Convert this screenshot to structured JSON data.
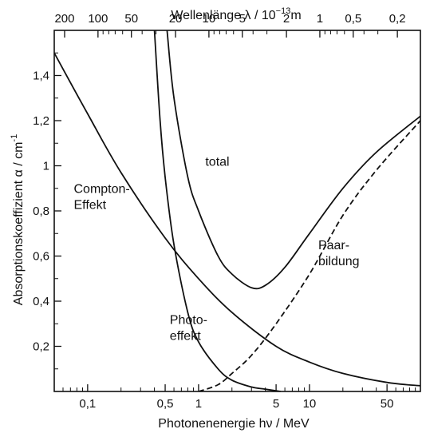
{
  "chart_data": {
    "type": "line",
    "title": "",
    "xlabel": "Photonenenergie  hν / MeV",
    "x2label": "Wellenlänge  λ / 10",
    "x2label_exp": "−13",
    "x2label_unit": "m",
    "ylabel": "Absorptionskoeffizient  α / cm",
    "ylabel_exp": "-1",
    "xscale": "log",
    "xlim": [
      0.05,
      100
    ],
    "ylim": [
      0,
      1.6
    ],
    "grid": false,
    "x_ticks": [
      {
        "value": 0.1,
        "label": "0,1"
      },
      {
        "value": 0.5,
        "label": "0,5"
      },
      {
        "value": 1,
        "label": "1"
      },
      {
        "value": 5,
        "label": "5"
      },
      {
        "value": 10,
        "label": "10"
      },
      {
        "value": 50,
        "label": "50"
      }
    ],
    "x2_ticks": [
      {
        "value": 200,
        "label": "200"
      },
      {
        "value": 100,
        "label": "100"
      },
      {
        "value": 50,
        "label": "50"
      },
      {
        "value": 20,
        "label": "20"
      },
      {
        "value": 10,
        "label": "10"
      },
      {
        "value": 5,
        "label": "5"
      },
      {
        "value": 2,
        "label": "2"
      },
      {
        "value": 1,
        "label": "1"
      },
      {
        "value": 0.5,
        "label": "0,5"
      },
      {
        "value": 0.2,
        "label": "0,2"
      }
    ],
    "y_ticks": [
      {
        "value": 0.2,
        "label": "0,2"
      },
      {
        "value": 0.4,
        "label": "0,4"
      },
      {
        "value": 0.6,
        "label": "0,6"
      },
      {
        "value": 0.8,
        "label": "0,8"
      },
      {
        "value": 1.0,
        "label": "1"
      },
      {
        "value": 1.2,
        "label": "1,2"
      },
      {
        "value": 1.4,
        "label": "1,4"
      }
    ],
    "series": [
      {
        "name": "total",
        "style": "solid",
        "x": [
          0.52,
          0.6,
          0.8,
          1.0,
          1.5,
          2.0,
          3.0,
          4.0,
          6.0,
          10,
          20,
          40,
          100
        ],
        "y": [
          1.6,
          1.3,
          0.95,
          0.8,
          0.6,
          0.52,
          0.46,
          0.47,
          0.55,
          0.7,
          0.9,
          1.06,
          1.22
        ]
      },
      {
        "name": "Compton-Effekt",
        "style": "solid",
        "x": [
          0.05,
          0.1,
          0.2,
          0.5,
          1.0,
          2.0,
          5.0,
          10,
          20,
          50,
          100
        ],
        "y": [
          1.5,
          1.23,
          0.97,
          0.68,
          0.5,
          0.35,
          0.2,
          0.13,
          0.08,
          0.04,
          0.025
        ]
      },
      {
        "name": "Photoeffekt",
        "style": "solid",
        "x": [
          0.4,
          0.45,
          0.5,
          0.6,
          0.8,
          1.0,
          1.5,
          2.0,
          3.0,
          4.0,
          5.5
        ],
        "y": [
          1.6,
          1.2,
          0.95,
          0.65,
          0.35,
          0.22,
          0.1,
          0.05,
          0.02,
          0.01,
          0.0
        ]
      },
      {
        "name": "Paarbildung",
        "style": "dashed",
        "x": [
          1.0,
          1.5,
          2.0,
          3.0,
          5.0,
          10,
          20,
          40,
          100
        ],
        "y": [
          0.0,
          0.03,
          0.08,
          0.16,
          0.3,
          0.52,
          0.78,
          0.98,
          1.2
        ]
      }
    ],
    "annotations": [
      {
        "name": "total",
        "lines": [
          "total"
        ]
      },
      {
        "name": "compton",
        "lines": [
          "Compton-",
          "Effekt"
        ]
      },
      {
        "name": "photo",
        "lines": [
          "Photo-",
          "effekt"
        ]
      },
      {
        "name": "paar",
        "lines": [
          "Paar-",
          "bildung"
        ]
      }
    ]
  }
}
